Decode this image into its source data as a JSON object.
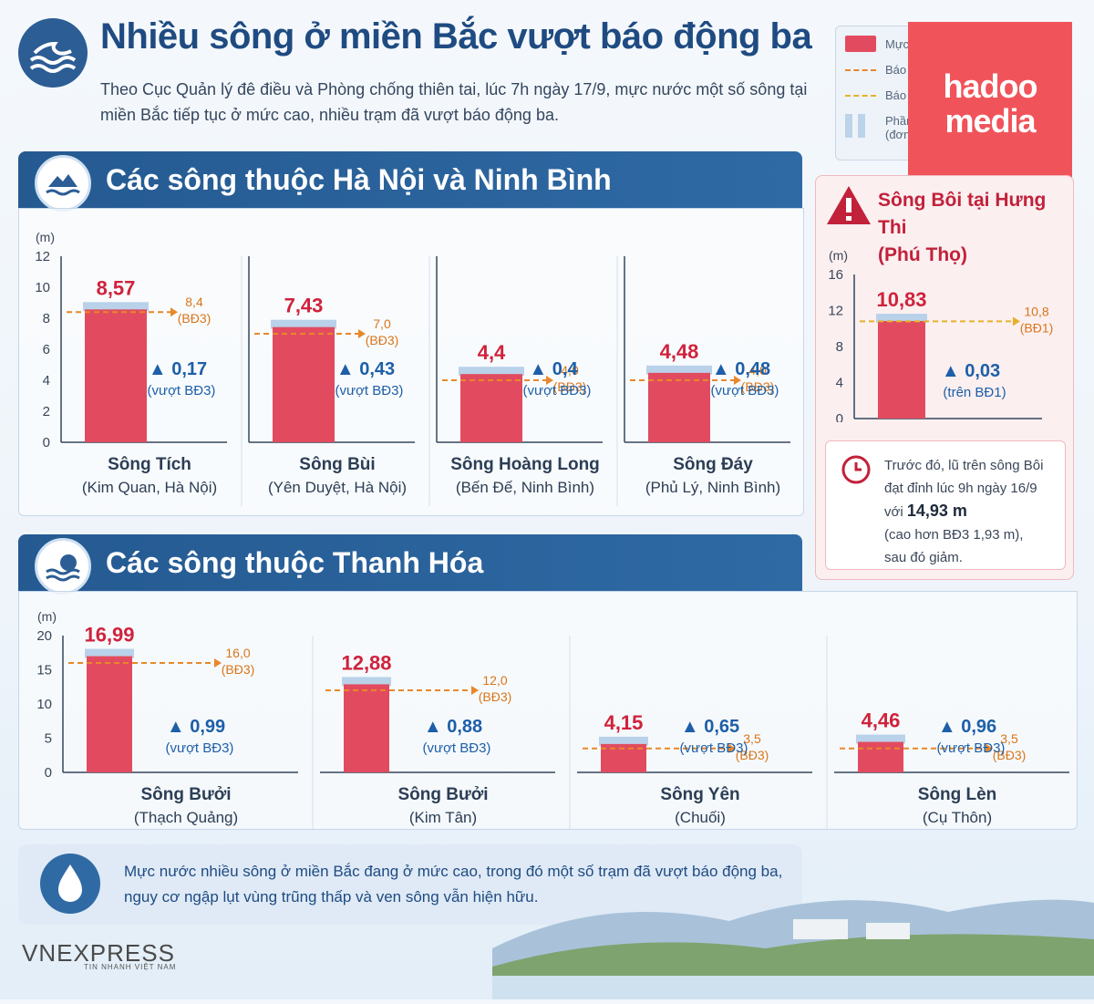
{
  "header": {
    "title": "Nhiều sông ở miền Bắc vượt báo động ba",
    "intro": "Theo Cục Quản lý đê điều và Phòng chống thiên tai, lúc 7h ngày 17/9, mực nước một số sông tại miền Bắc tiếp tục ở mức cao, nhiều trạm đã vượt báo động ba."
  },
  "legend": {
    "current": "Mực nước hiện tại (m)",
    "alarm3": "Báo động ba",
    "alarm1": "Báo động một",
    "band_line1": "Phần vượt báo động",
    "band_line2": "(đơn vị: m)"
  },
  "brand": {
    "line1": "hadoo",
    "line2": "media"
  },
  "colors": {
    "bar": "#e24b5f",
    "alarm3": "#e8882a",
    "alarm1": "#e6b12a",
    "band": "#b9d2ea",
    "accent": "#1f4b82",
    "value": "#d0223c",
    "delta": "#1d5fa8"
  },
  "sections": [
    {
      "title": "Các sông thuộc Hà Nội và Ninh Bình"
    },
    {
      "title": "Các sông thuộc Thanh Hóa"
    }
  ],
  "side": {
    "title_line1": "Sông Bôi tại Hưng Thi",
    "title_line2": "(Phú Thọ)",
    "note_line1": "Trước đó, lũ trên sông Bôi đạt đỉnh lúc 9h ngày 16/9 với",
    "note_value": "14,93 m",
    "note_line2": "(cao hơn BĐ3 1,93 m),",
    "note_line3": "sau đó giảm."
  },
  "footer": {
    "text": "Mực nước nhiều sông ở miền Bắc đang ở mức cao, trong đó một số trạm đã vượt báo động ba, nguy cơ ngập lụt vùng trũng thấp và ven sông vẫn hiện hữu.",
    "source_name": "VNEXPRESS",
    "source_tagline": "TIN NHANH VIỆT NAM"
  },
  "chart_data": [
    {
      "type": "bar",
      "ylabel": "(m)",
      "ylim": [
        0,
        12
      ],
      "yticks": [
        "0",
        "2",
        "4",
        "6",
        "8",
        "10",
        "12"
      ],
      "bars": [
        {
          "name": "Sông Tích",
          "station": "(Kim Quan, Hà Nội)",
          "value": 8.57,
          "value_label": "8,57",
          "alarm": 8.4,
          "alarm_label": "8,4",
          "alarm_tag": "(BĐ3)",
          "delta_label": "0,17",
          "delta_note": "(vượt BĐ3)"
        },
        {
          "name": "Sông Bùi",
          "station": "(Yên Duyệt, Hà Nội)",
          "value": 7.43,
          "value_label": "7,43",
          "alarm": 7.0,
          "alarm_label": "7,0",
          "alarm_tag": "(BĐ3)",
          "delta_label": "0,43",
          "delta_note": "(vượt BĐ3)"
        },
        {
          "name": "Sông Hoàng Long",
          "station": "(Bến Đế, Ninh Bình)",
          "value": 4.4,
          "value_label": "4,4",
          "alarm": 4.0,
          "alarm_label": "4,0",
          "alarm_tag": "(BĐ3)",
          "delta_label": "0,4",
          "delta_note": "(vượt BĐ3)"
        },
        {
          "name": "Sông Đáy",
          "station": "(Phủ Lý, Ninh Bình)",
          "value": 4.48,
          "value_label": "4,48",
          "alarm": 4.0,
          "alarm_label": "4,0",
          "alarm_tag": "(BĐ3)",
          "delta_label": "0,48",
          "delta_note": "(vượt BĐ3)"
        }
      ]
    },
    {
      "type": "bar",
      "ylabel": "(m)",
      "ylim": [
        0,
        20
      ],
      "yticks": [
        "0",
        "5",
        "10",
        "15",
        "20"
      ],
      "bars": [
        {
          "name": "Sông Bưởi",
          "station": "(Thạch Quảng)",
          "value": 16.99,
          "value_label": "16,99",
          "alarm": 16.0,
          "alarm_label": "16,0",
          "alarm_tag": "(BĐ3)",
          "delta_label": "0,99",
          "delta_note": "(vượt BĐ3)"
        },
        {
          "name": "Sông Bưởi",
          "station": "(Kim Tân)",
          "value": 12.88,
          "value_label": "12,88",
          "alarm": 12.0,
          "alarm_label": "12,0",
          "alarm_tag": "(BĐ3)",
          "delta_label": "0,88",
          "delta_note": "(vượt BĐ3)"
        },
        {
          "name": "Sông Yên",
          "station": "(Chuối)",
          "value": 4.15,
          "value_label": "4,15",
          "alarm": 3.5,
          "alarm_label": "3,5",
          "alarm_tag": "(BĐ3)",
          "delta_label": "0,65",
          "delta_note": "(vượt BĐ3)"
        },
        {
          "name": "Sông Lèn",
          "station": "(Cụ Thôn)",
          "value": 4.46,
          "value_label": "4,46",
          "alarm": 3.5,
          "alarm_label": "3,5",
          "alarm_tag": "(BĐ3)",
          "delta_label": "0,96",
          "delta_note": "(vượt BĐ3)"
        }
      ]
    },
    {
      "type": "bar",
      "ylabel": "(m)",
      "ylim": [
        0,
        16
      ],
      "yticks": [
        "0",
        "4",
        "8",
        "12",
        "16"
      ],
      "bars": [
        {
          "name": "Sông Bôi",
          "station": "",
          "value": 10.83,
          "value_label": "10,83",
          "alarm": 10.8,
          "alarm_label": "10,8",
          "alarm_tag": "(BĐ1)",
          "delta_label": "0,03",
          "delta_note": "(trên BĐ1)"
        }
      ]
    }
  ]
}
